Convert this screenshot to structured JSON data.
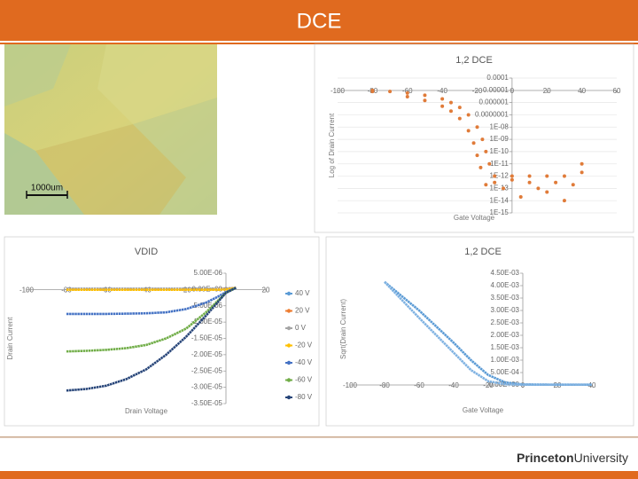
{
  "header": {
    "title": "DCE"
  },
  "image": {
    "scale_label": "1000um"
  },
  "chart_data": [
    {
      "type": "scatter",
      "title": "1,2 DCE",
      "x_label": "Gate Voltage",
      "y_label": "Log of Drain Current",
      "log_y": true,
      "grid": true,
      "xlim": [
        -100,
        60
      ],
      "xticks": [
        -100,
        -80,
        -60,
        -40,
        -20,
        0,
        20,
        40,
        60
      ],
      "ylim": [
        1e-15,
        0.0001
      ],
      "yticks": [
        0.0001,
        1e-05,
        1e-06,
        {
          "value": 1e-07,
          "label": "0.0000001"
        },
        {
          "value": 1e-08,
          "label": "1E-08"
        },
        {
          "value": 1e-09,
          "label": "1E-09"
        },
        {
          "value": 1e-10,
          "label": "1E-10"
        },
        {
          "value": 1e-11,
          "label": "1E-11"
        },
        {
          "value": 1e-12,
          "label": "1E-12"
        },
        {
          "value": 1e-13,
          "label": "1E-13"
        },
        {
          "value": 1e-14,
          "label": "1E-14"
        },
        {
          "value": 1e-15,
          "label": "1E-15"
        }
      ],
      "series": [
        {
          "color": "#e07b39",
          "x": [
            -80,
            -70,
            -60,
            -50,
            -40,
            -35,
            -30,
            -25,
            -20,
            -17,
            -15,
            -13,
            -10,
            0,
            10,
            20,
            30,
            40
          ],
          "values": [
            1e-05,
            8e-06,
            6e-06,
            4e-06,
            2e-06,
            1e-06,
            4e-07,
            1e-07,
            1e-08,
            1e-09,
            1e-10,
            1e-11,
            1e-12,
            1e-12,
            1e-12,
            1e-12,
            1e-12,
            2e-12
          ]
        },
        {
          "color": "#e07b39",
          "x": [
            -80,
            -60,
            -50,
            -40,
            -35,
            -30,
            -25,
            -22,
            -20,
            -18,
            -15,
            -10,
            -5,
            0,
            5,
            10,
            15,
            20,
            25,
            30,
            35,
            40
          ],
          "values": [
            8e-06,
            3e-06,
            1.5e-06,
            5e-07,
            2e-07,
            5e-08,
            5e-09,
            5e-10,
            5e-11,
            5e-12,
            2e-13,
            3e-13,
            1e-13,
            5e-13,
            2e-14,
            3e-13,
            1e-13,
            5e-14,
            3e-13,
            1e-14,
            2e-13,
            1e-11
          ]
        }
      ]
    },
    {
      "type": "line",
      "title": "VDID",
      "x_label": "Drain Voltage",
      "y_label": "Drain Current",
      "legend": "right",
      "xlim": [
        -100,
        20
      ],
      "xticks": [
        -100,
        -80,
        -60,
        -40,
        -20,
        0,
        20
      ],
      "ylim": [
        -3.5e-05,
        5e-06
      ],
      "yticks": [
        {
          "value": 5e-06,
          "label": "5.00E-06"
        },
        {
          "value": 0,
          "label": "0.00E+00"
        },
        {
          "value": -5e-06,
          "label": "-5.00E-06"
        },
        {
          "value": -1e-05,
          "label": "-1.00E-05"
        },
        {
          "value": -1.5e-05,
          "label": "-1.50E-05"
        },
        {
          "value": -2e-05,
          "label": "-2.00E-05"
        },
        {
          "value": -2.5e-05,
          "label": "-2.50E-05"
        },
        {
          "value": -3e-05,
          "label": "-3.00E-05"
        },
        {
          "value": -3.5e-05,
          "label": "-3.50E-05"
        }
      ],
      "x": [
        -80,
        -70,
        -60,
        -50,
        -40,
        -30,
        -20,
        -10,
        -5,
        0,
        5
      ],
      "series": [
        {
          "name": "40 V",
          "color": "#5b9bd5",
          "values": [
            2e-07,
            2e-07,
            2e-07,
            2e-07,
            2e-07,
            2e-07,
            2e-07,
            2e-07,
            2e-07,
            3e-07,
            5e-07
          ]
        },
        {
          "name": "20 V",
          "color": "#ed7d31",
          "values": [
            1e-07,
            1e-07,
            1e-07,
            1e-07,
            1e-07,
            1e-07,
            1e-07,
            1e-07,
            1e-07,
            2e-07,
            5e-07
          ]
        },
        {
          "name": "0 V",
          "color": "#a5a5a5",
          "values": [
            0,
            0,
            0,
            0,
            0,
            0,
            0,
            0,
            0,
            1e-07,
            5e-07
          ]
        },
        {
          "name": "-20 V",
          "color": "#ffc000",
          "values": [
            -1e-07,
            -1e-07,
            -1e-07,
            -1e-07,
            -1e-07,
            -1e-07,
            -1e-07,
            -1e-07,
            -1e-07,
            0,
            5e-07
          ]
        },
        {
          "name": "-40 V",
          "color": "#4472c4",
          "values": [
            -7.5e-06,
            -7.5e-06,
            -7.5e-06,
            -7.4e-06,
            -7.3e-06,
            -7e-06,
            -6e-06,
            -4e-06,
            -2.5e-06,
            -8e-07,
            5e-07
          ]
        },
        {
          "name": "-60 V",
          "color": "#70ad47",
          "values": [
            -1.9e-05,
            -1.88e-05,
            -1.85e-05,
            -1.8e-05,
            -1.7e-05,
            -1.5e-05,
            -1.2e-05,
            -7e-06,
            -4e-06,
            -1e-06,
            5e-07
          ]
        },
        {
          "name": "-80 V",
          "color": "#264478",
          "values": [
            -3.1e-05,
            -3.05e-05,
            -2.95e-05,
            -2.75e-05,
            -2.45e-05,
            -2e-05,
            -1.45e-05,
            -8e-06,
            -4.5e-06,
            -1e-06,
            5e-07
          ]
        }
      ]
    },
    {
      "type": "line",
      "title": "1,2 DCE",
      "x_label": "Gate Voltage",
      "y_label": "Sqrt(Drain Current)",
      "xlim": [
        -100,
        40
      ],
      "xticks": [
        -100,
        -80,
        -60,
        -40,
        -20,
        0,
        20,
        40
      ],
      "ylim": [
        0,
        0.0045
      ],
      "yticks": [
        {
          "value": 0.0045,
          "label": "4.50E-03"
        },
        {
          "value": 0.004,
          "label": "4.00E-03"
        },
        {
          "value": 0.0035,
          "label": "3.50E-03"
        },
        {
          "value": 0.003,
          "label": "3.00E-03"
        },
        {
          "value": 0.0025,
          "label": "2.50E-03"
        },
        {
          "value": 0.002,
          "label": "2.00E-03"
        },
        {
          "value": 0.0015,
          "label": "1.50E-03"
        },
        {
          "value": 0.001,
          "label": "1.00E-03"
        },
        {
          "value": 0.0005,
          "label": "5.00E-04"
        },
        {
          "value": 0,
          "label": "0.00E+00"
        }
      ],
      "x": [
        -80,
        -60,
        -40,
        -30,
        -20,
        -10,
        0,
        20,
        40
      ],
      "series": [
        {
          "color": "#5b9bd5",
          "values": [
            0.00415,
            0.003,
            0.0017,
            0.001,
            0.0004,
            0.0001,
            2e-05,
            1e-05,
            1e-05
          ]
        },
        {
          "color": "#7fb2e2",
          "values": [
            0.00415,
            0.0027,
            0.0013,
            0.0006,
            0.00015,
            3e-05,
            1e-05,
            1e-05,
            1e-05
          ]
        }
      ]
    }
  ],
  "footer": {
    "logo_bold": "Princeton",
    "logo_regular": "University"
  }
}
